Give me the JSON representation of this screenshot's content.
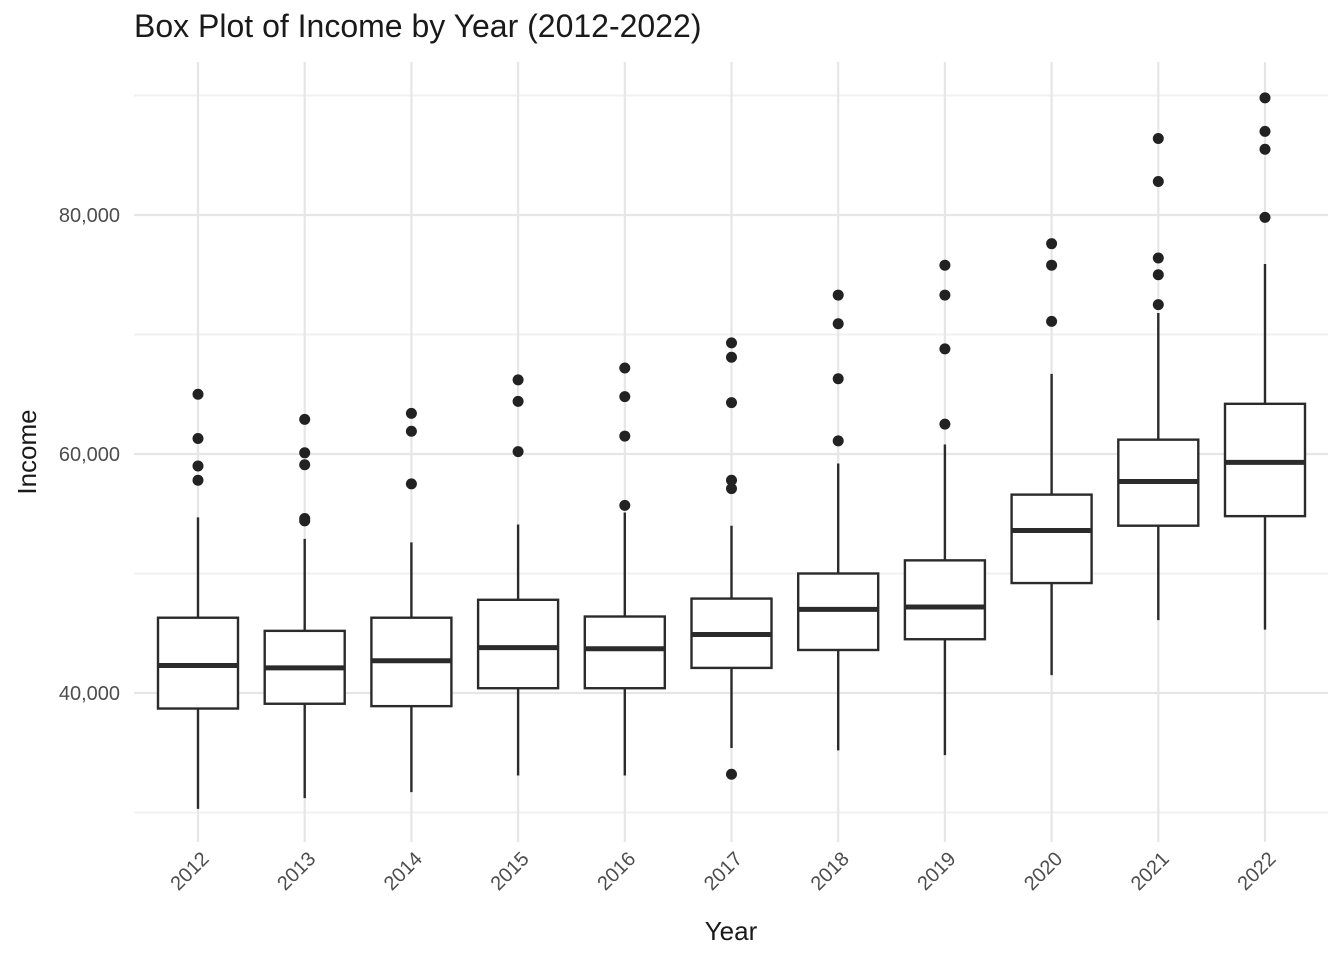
{
  "chart_data": {
    "type": "box",
    "title": "Box Plot of Income by Year (2012-2022)",
    "xlabel": "Year",
    "ylabel": "Income",
    "ylim": [
      29000,
      90000
    ],
    "y_ticks": [
      40000,
      60000,
      80000
    ],
    "y_tick_labels": [
      "40,000",
      "60,000",
      "80,000"
    ],
    "grid": true,
    "colors": {
      "box_stroke": "#2b2b2b",
      "grid_major": "#e6e6e6",
      "grid_minor": "#f0f0f0",
      "point": "#222222"
    },
    "categories": [
      "2012",
      "2013",
      "2014",
      "2015",
      "2016",
      "2017",
      "2018",
      "2019",
      "2020",
      "2021",
      "2022"
    ],
    "boxes": [
      {
        "x": "2012",
        "whisker_low": 30300,
        "q1": 38700,
        "median": 42300,
        "q3": 46300,
        "whisker_high": 54700,
        "outliers": [
          57800,
          59000,
          61300,
          65000
        ]
      },
      {
        "x": "2013",
        "whisker_low": 31200,
        "q1": 39100,
        "median": 42100,
        "q3": 45200,
        "whisker_high": 52900,
        "outliers": [
          54400,
          54600,
          59100,
          60100,
          62900
        ]
      },
      {
        "x": "2014",
        "whisker_low": 31700,
        "q1": 38900,
        "median": 42700,
        "q3": 46300,
        "whisker_high": 52600,
        "outliers": [
          57500,
          61900,
          63400
        ]
      },
      {
        "x": "2015",
        "whisker_low": 33100,
        "q1": 40400,
        "median": 43800,
        "q3": 47800,
        "whisker_high": 54100,
        "outliers": [
          60200,
          64400,
          66200
        ]
      },
      {
        "x": "2016",
        "whisker_low": 33100,
        "q1": 40400,
        "median": 43700,
        "q3": 46400,
        "whisker_high": 55100,
        "outliers": [
          55700,
          61500,
          64800,
          67200
        ]
      },
      {
        "x": "2017",
        "whisker_low": 35400,
        "q1": 42100,
        "median": 44900,
        "q3": 47900,
        "whisker_high": 54000,
        "outliers": [
          33200,
          57100,
          57800,
          64300,
          68100,
          69300
        ]
      },
      {
        "x": "2018",
        "whisker_low": 35200,
        "q1": 43600,
        "median": 47000,
        "q3": 50000,
        "whisker_high": 59200,
        "outliers": [
          61100,
          66300,
          70900,
          73300
        ]
      },
      {
        "x": "2019",
        "whisker_low": 34800,
        "q1": 44500,
        "median": 47200,
        "q3": 51100,
        "whisker_high": 60800,
        "outliers": [
          62500,
          68800,
          73300,
          75800
        ]
      },
      {
        "x": "2020",
        "whisker_low": 41500,
        "q1": 49200,
        "median": 53600,
        "q3": 56600,
        "whisker_high": 66700,
        "outliers": [
          71100,
          75800,
          77600
        ]
      },
      {
        "x": "2021",
        "whisker_low": 46100,
        "q1": 54000,
        "median": 57700,
        "q3": 61200,
        "whisker_high": 71800,
        "outliers": [
          72500,
          75000,
          76400,
          82800,
          86400
        ]
      },
      {
        "x": "2022",
        "whisker_low": 45300,
        "q1": 54800,
        "median": 59300,
        "q3": 64200,
        "whisker_high": 75900,
        "outliers": [
          79800,
          85500,
          87000,
          89800
        ]
      }
    ]
  }
}
